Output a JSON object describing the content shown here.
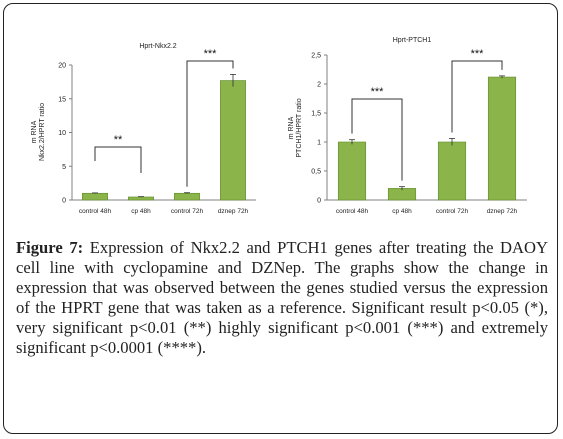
{
  "figure": {
    "caption_label": "Figure 7:",
    "caption_text": " Expression of Nkx2.2 and PTCH1 genes after treating the DAOY cell line with cyclopamine and DZNep. The graphs show the change in expression that was observed between the genes studied versus the expression of the HPRT gene that was taken as a reference. Significant result p<0.05 (*), very significant p<0.01 (**) highly significant p<0.001 (***) and extremely significant p<0.0001 (****)."
  },
  "colors": {
    "bar": "#8bb54a",
    "bar_stroke": "#5f8a2a",
    "axis": "#808080",
    "text": "#222222"
  },
  "chart_data": [
    {
      "type": "bar",
      "title": "Hprt-Nkx2.2",
      "ylabel": "m RNA\nNkx2.2/HPRT ratio",
      "categories": [
        "control 48h",
        "cp 48h",
        "control 72h",
        "dznep 72h"
      ],
      "values": [
        1.0,
        0.45,
        1.0,
        17.7
      ],
      "errors": [
        0.05,
        0.05,
        0.08,
        0.9
      ],
      "ylim": [
        0,
        20
      ],
      "yticks": [
        "0",
        "5",
        "10",
        "15",
        "20"
      ],
      "annotations": [
        {
          "label": "**",
          "from": 0,
          "to": 1
        },
        {
          "label": "***",
          "from": 2,
          "to": 3
        }
      ]
    },
    {
      "type": "bar",
      "title": "Hprt-PTCH1",
      "ylabel": "m RNA\nPTCH1/HPRT ratio",
      "categories": [
        "control 48h",
        "cp 48h",
        "control 72h",
        "dznep 72h"
      ],
      "values": [
        1.0,
        0.2,
        1.0,
        2.12
      ],
      "errors": [
        0.04,
        0.03,
        0.06,
        0.02
      ],
      "ylim": [
        0,
        2.5
      ],
      "yticks": [
        "0",
        "0,5",
        "1",
        "1,5",
        "2",
        "2,5"
      ],
      "annotations": [
        {
          "label": "***",
          "from": 0,
          "to": 1
        },
        {
          "label": "***",
          "from": 2,
          "to": 3
        }
      ]
    }
  ]
}
